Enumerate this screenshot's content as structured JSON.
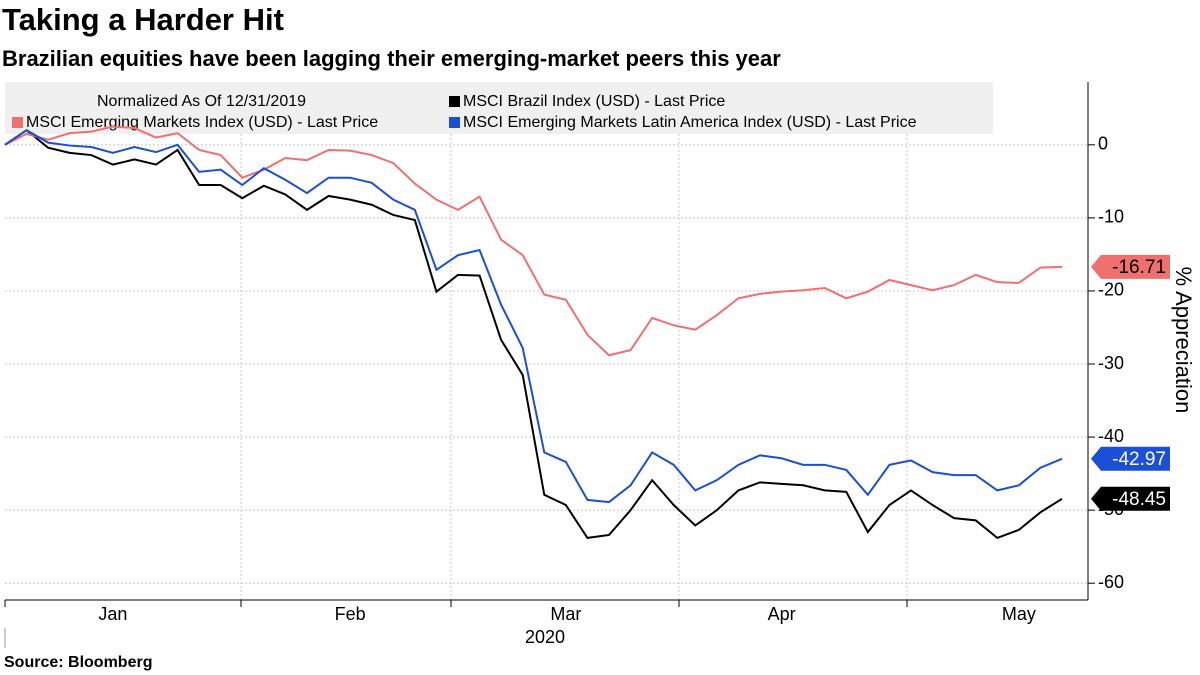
{
  "chart_data": {
    "type": "line",
    "title": "Taking a Harder Hit",
    "subtitle": "Brazilian equities have been lagging their emerging-market peers this year",
    "legend_title": "Normalized As Of 12/31/2019",
    "ylabel": "% Appreciation",
    "xlabel": "2020",
    "source": "Source:  Bloomberg",
    "categories": [
      null,
      null,
      null,
      null,
      null,
      "Jan",
      null,
      null,
      null,
      null,
      null,
      null,
      null,
      null,
      null,
      null,
      "Feb",
      null,
      null,
      null,
      null,
      null,
      null,
      null,
      null,
      null,
      "Mar",
      null,
      null,
      null,
      null,
      null,
      null,
      null,
      null,
      null,
      "Apr",
      null,
      null,
      null,
      null,
      null,
      null,
      null,
      null,
      null,
      null,
      "May",
      null,
      null
    ],
    "series": [
      {
        "name": "MSCI Brazil Index (USD) - Last Price",
        "color": "#000000",
        "values": [
          0,
          2,
          -0.4,
          -1.1,
          -1.4,
          -2.7,
          -2,
          -2.7,
          -0.7,
          -5.5,
          -5.5,
          -7.3,
          -5.6,
          -6.8,
          -8.9,
          -7,
          -7.5,
          -8.2,
          -9.6,
          -10.3,
          -20.1,
          -17.8,
          -17.9,
          -26.7,
          -31.5,
          -47.9,
          -49.3,
          -53.8,
          -53.4,
          -50,
          -45.9,
          -49.3,
          -52.1,
          -50,
          -47.3,
          -46.2,
          -46.4,
          -46.6,
          -47.3,
          -47.5,
          -53,
          -49.3,
          -47.3,
          -49.3,
          -51.1,
          -51.4,
          -53.8,
          -52.7,
          -50.3,
          -48.45
        ]
      },
      {
        "name": "MSCI Emerging Markets Index (USD) - Last Price",
        "color": "#f07070",
        "values": [
          0,
          1.5,
          0.7,
          1.6,
          1.8,
          2.5,
          2.3,
          1,
          1.6,
          -0.7,
          -1.4,
          -4.5,
          -3.4,
          -1.8,
          -2.1,
          -0.7,
          -0.8,
          -1.4,
          -2.5,
          -5.3,
          -7.5,
          -8.9,
          -7.1,
          -13,
          -15.1,
          -20.5,
          -21.2,
          -26,
          -28.8,
          -28.1,
          -23.7,
          -24.7,
          -25.3,
          -23.3,
          -21,
          -20.4,
          -20.1,
          -19.9,
          -19.6,
          -21,
          -20.1,
          -18.5,
          -19.2,
          -19.9,
          -19.2,
          -17.8,
          -18.8,
          -18.9,
          -16.8,
          -16.71
        ]
      },
      {
        "name": "MSCI Emerging Markets Latin America Index (USD) - Last Price",
        "color": "#1a4fd6",
        "values": [
          0,
          2,
          0.3,
          -0.1,
          -0.3,
          -1.1,
          -0.3,
          -1,
          0,
          -3.7,
          -3.4,
          -5.5,
          -3.2,
          -4.8,
          -6.6,
          -4.5,
          -4.5,
          -5.2,
          -7.5,
          -8.9,
          -17.1,
          -15.1,
          -14.4,
          -21.9,
          -27.8,
          -42.1,
          -43.4,
          -48.6,
          -48.9,
          -46.6,
          -42.1,
          -43.8,
          -47.3,
          -45.9,
          -43.8,
          -42.5,
          -42.9,
          -43.8,
          -43.8,
          -44.5,
          -47.9,
          -43.8,
          -43.2,
          -44.8,
          -45.2,
          -45.2,
          -47.3,
          -46.6,
          -44.2,
          -42.97
        ]
      }
    ],
    "ylim": [
      -62.3,
      8.6
    ],
    "yticks": [
      0,
      -10,
      -20,
      -30,
      -40,
      -50,
      -60
    ],
    "grid": true
  }
}
